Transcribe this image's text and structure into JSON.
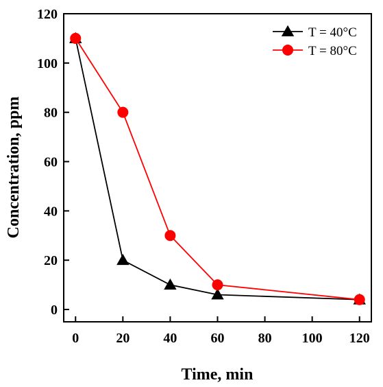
{
  "chart_data": {
    "type": "line",
    "xlabel": "Time, min",
    "ylabel": "Concentration, ppm",
    "xlim": [
      -5,
      125
    ],
    "ylim": [
      -5,
      120
    ],
    "x_ticks": [
      0,
      20,
      40,
      60,
      80,
      100,
      120
    ],
    "y_ticks": [
      0,
      20,
      40,
      60,
      80,
      100,
      120
    ],
    "grid": false,
    "legend_position": "top-right",
    "series": [
      {
        "name": "T = 40°C",
        "color": "#000000",
        "marker": "triangle",
        "x": [
          0,
          20,
          40,
          60,
          120
        ],
        "values": [
          110,
          20,
          10,
          6,
          4
        ]
      },
      {
        "name": "T = 80°C",
        "color": "#ff0000",
        "marker": "circle",
        "x": [
          0,
          20,
          40,
          60,
          120
        ],
        "values": [
          110,
          80,
          30,
          10,
          4
        ]
      }
    ]
  }
}
